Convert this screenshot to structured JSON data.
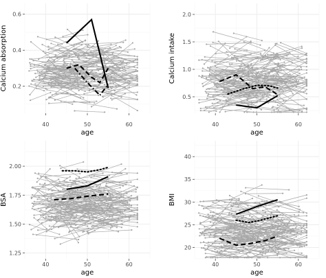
{
  "chart_data": [
    {
      "type": "line",
      "xlabel": "age",
      "ylabel": "Calcium absorption",
      "xlim": [
        35,
        65
      ],
      "ylim": [
        0.05,
        0.66
      ],
      "xticks": [
        "40",
        "50",
        "60"
      ],
      "yticks": [
        "0.2",
        "0.4",
        "0.6"
      ],
      "xtick_values": [
        40,
        50,
        60
      ],
      "ytick_values": [
        0.2,
        0.4,
        0.6
      ],
      "grid": true,
      "background_subjects": {
        "color": "#a6a6a6",
        "count": 250,
        "x_range": [
          36,
          62
        ],
        "y_center": 0.29,
        "y_spread": 0.08
      },
      "series": [
        {
          "style": "solid",
          "x": [
            45,
            51,
            55
          ],
          "y": [
            0.44,
            0.57,
            0.19
          ]
        },
        {
          "style": "dashed",
          "x": [
            45,
            48,
            51,
            53,
            55
          ],
          "y": [
            0.3,
            0.32,
            0.25,
            0.22,
            0.3
          ]
        },
        {
          "style": "dotdash",
          "x": [
            47,
            50,
            53,
            55
          ],
          "y": [
            0.3,
            0.22,
            0.15,
            0.21
          ]
        }
      ]
    },
    {
      "type": "line",
      "xlabel": "age",
      "ylabel": "Calcium intake",
      "xlim": [
        35,
        65
      ],
      "ylim": [
        0.2,
        2.2
      ],
      "xticks": [
        "40",
        "50",
        "60"
      ],
      "yticks": [
        "0.5",
        "1.0",
        "1.5",
        "2.0"
      ],
      "xtick_values": [
        40,
        50,
        60
      ],
      "ytick_values": [
        0.5,
        1.0,
        1.5,
        2.0
      ],
      "grid": true,
      "background_subjects": {
        "color": "#a6a6a6",
        "count": 250,
        "x_range": [
          36,
          62
        ],
        "y_center": 0.78,
        "y_spread": 0.3
      },
      "series": [
        {
          "style": "solid",
          "x": [
            45,
            50,
            55
          ],
          "y": [
            0.35,
            0.3,
            0.52
          ]
        },
        {
          "style": "dashed",
          "x": [
            41,
            45,
            49,
            52,
            55
          ],
          "y": [
            0.78,
            0.9,
            0.65,
            0.68,
            0.54
          ]
        },
        {
          "style": "dotted",
          "x": [
            43,
            47,
            50,
            53,
            55
          ],
          "y": [
            0.55,
            0.65,
            0.71,
            0.7,
            0.66
          ]
        }
      ]
    },
    {
      "type": "line",
      "xlabel": "age",
      "ylabel": "BSA",
      "xlim": [
        35,
        65
      ],
      "ylim": [
        1.2,
        2.22
      ],
      "xticks": [
        "40",
        "50",
        "60"
      ],
      "yticks": [
        "1.25",
        "1.50",
        "1.75",
        "2.00"
      ],
      "xtick_values": [
        40,
        50,
        60
      ],
      "ytick_values": [
        1.25,
        1.5,
        1.75,
        2.0
      ],
      "grid": true,
      "background_subjects": {
        "color": "#a6a6a6",
        "count": 250,
        "x_range": [
          36,
          62
        ],
        "y_center": 1.66,
        "y_spread": 0.12
      },
      "series": [
        {
          "style": "solid",
          "x": [
            45,
            50,
            55
          ],
          "y": [
            1.8,
            1.83,
            1.91
          ]
        },
        {
          "style": "dashed",
          "x": [
            42,
            46,
            50,
            55
          ],
          "y": [
            1.71,
            1.72,
            1.74,
            1.76
          ]
        },
        {
          "style": "dotted",
          "x": [
            44,
            47,
            50,
            53,
            55
          ],
          "y": [
            1.96,
            1.96,
            1.95,
            1.97,
            1.99
          ]
        }
      ]
    },
    {
      "type": "line",
      "xlabel": "age",
      "ylabel": "BMI",
      "xlim": [
        35,
        65
      ],
      "ylim": [
        17.5,
        43.5
      ],
      "xticks": [
        "40",
        "50",
        "60"
      ],
      "yticks": [
        "20",
        "25",
        "30",
        "35",
        "40"
      ],
      "xtick_values": [
        40,
        50,
        60
      ],
      "ytick_values": [
        20,
        25,
        30,
        35,
        40
      ],
      "grid": true,
      "background_subjects": {
        "color": "#a6a6a6",
        "count": 250,
        "x_range": [
          36,
          62
        ],
        "y_center": 23.5,
        "y_spread": 3.2
      },
      "series": [
        {
          "style": "solid",
          "x": [
            45,
            50,
            55
          ],
          "y": [
            27.3,
            29.0,
            30.5
          ]
        },
        {
          "style": "dashed",
          "x": [
            41,
            45,
            48,
            52,
            55
          ],
          "y": [
            22.0,
            20.5,
            20.8,
            21.5,
            22.5
          ]
        },
        {
          "style": "dotted",
          "x": [
            45,
            48,
            50,
            53,
            55
          ],
          "y": [
            26.0,
            25.5,
            25.8,
            26.5,
            27.0
          ]
        }
      ]
    }
  ]
}
